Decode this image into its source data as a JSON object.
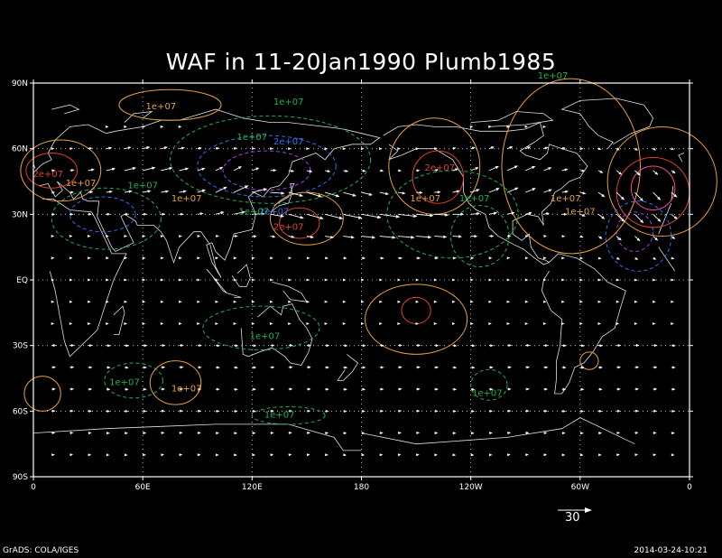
{
  "title": "WAF in 11-20Jan1990 Plumb1985",
  "lat_ticks": [
    "90N",
    "60N",
    "30N",
    "EQ",
    "30S",
    "60S",
    "90S"
  ],
  "lon_ticks": [
    "0",
    "60E",
    "120E",
    "180",
    "120W",
    "60W",
    "0"
  ],
  "reference_vector": {
    "value": 30,
    "label": "30"
  },
  "footer_left": "GrADS: COLA/IGES",
  "footer_right": "2014-03-24-10:21",
  "colors": {
    "positive_low": "#e8a040",
    "positive_high": "#e04030",
    "positive_max": "#ff40a0",
    "negative_low": "#20b050",
    "negative_mid": "#3070f0",
    "negative_high": "#a040f0",
    "coast": "#e0e0e0",
    "vectors": "#ffffff"
  },
  "contour_labels": [
    {
      "text": "1e+07",
      "lon": 70,
      "lat": 78,
      "sign": "pos"
    },
    {
      "text": "1e+07",
      "lon": 140,
      "lat": 80,
      "sign": "neg"
    },
    {
      "text": "1e+07",
      "lon": 120,
      "lat": 64,
      "sign": "neg"
    },
    {
      "text": "2e+07",
      "lon": 140,
      "lat": 62,
      "sign": "neg2"
    },
    {
      "text": "2e+07",
      "lon": 8,
      "lat": 47,
      "sign": "pos2"
    },
    {
      "text": "1e+07",
      "lon": 26,
      "lat": 43,
      "sign": "pos"
    },
    {
      "text": "1e+07",
      "lon": 60,
      "lat": 42,
      "sign": "neg"
    },
    {
      "text": "1e+07",
      "lon": 84,
      "lat": 36,
      "sign": "pos"
    },
    {
      "text": "2e+07",
      "lon": 132,
      "lat": 30,
      "sign": "neg2"
    },
    {
      "text": "1e+07",
      "lon": 121,
      "lat": 30,
      "sign": "neg"
    },
    {
      "text": "2e+07",
      "lon": 140,
      "lat": 23,
      "sign": "pos2"
    },
    {
      "text": "2e+07",
      "lon": 223,
      "lat": 50,
      "sign": "pos2"
    },
    {
      "text": "1e+07",
      "lon": 215,
      "lat": 36,
      "sign": "pos"
    },
    {
      "text": "1e+07",
      "lon": 242,
      "lat": 36,
      "sign": "neg"
    },
    {
      "text": "1e+07",
      "lon": 285,
      "lat": 92,
      "sign": "neg"
    },
    {
      "text": "1e+07",
      "lon": 292,
      "lat": 36,
      "sign": "pos"
    },
    {
      "text": "1e+07",
      "lon": 300,
      "lat": 30,
      "sign": "pos"
    },
    {
      "text": "1e+07",
      "lon": 127,
      "lat": -27,
      "sign": "neg"
    },
    {
      "text": "1e+07",
      "lon": 50,
      "lat": -48,
      "sign": "neg"
    },
    {
      "text": "1e+07",
      "lon": 84,
      "lat": -51,
      "sign": "pos"
    },
    {
      "text": "1e+07",
      "lon": 135,
      "lat": -63,
      "sign": "neg"
    },
    {
      "text": "1e+07",
      "lon": 249,
      "lat": -53,
      "sign": "neg"
    }
  ]
}
